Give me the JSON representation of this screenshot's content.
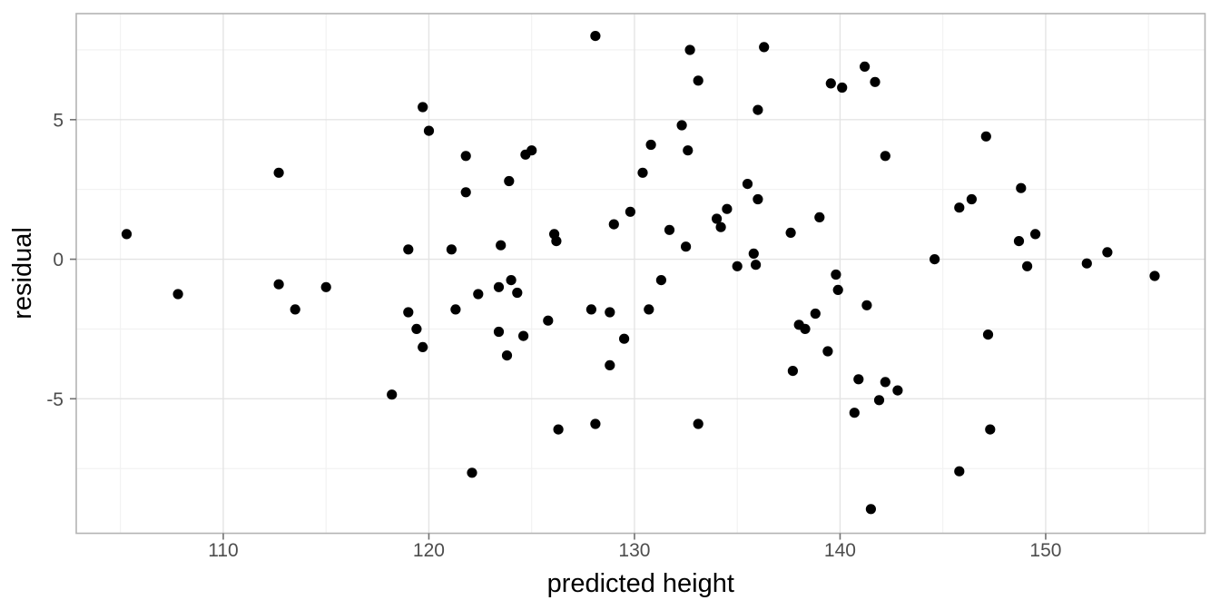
{
  "chart_data": {
    "type": "scatter",
    "title": "",
    "xlabel": "predicted height",
    "ylabel": "residual",
    "xlim": [
      102.85,
      157.75
    ],
    "ylim": [
      -9.82,
      8.8
    ],
    "x_major_ticks": [
      110,
      120,
      130,
      140,
      150
    ],
    "x_minor_ticks": [
      105,
      115,
      125,
      135,
      145,
      155
    ],
    "y_major_ticks": [
      -5,
      0,
      5
    ],
    "y_minor_ticks": [
      -7.5,
      -2.5,
      2.5,
      7.5
    ],
    "grid": true,
    "legend_position": "none",
    "colors": {
      "background": "#ffffff",
      "panel_background": "#ffffff",
      "panel_border": "#b4b4b4",
      "grid_major": "#e4e4e4",
      "grid_minor": "#f1f1f1",
      "tick_mark": "#707070",
      "tick_label": "#4d4d4d",
      "axis_title": "#000000",
      "point": "#000000"
    },
    "point_radius_px": 5.6,
    "points": [
      [
        105.3,
        0.9
      ],
      [
        107.8,
        -1.25
      ],
      [
        112.7,
        3.1
      ],
      [
        112.7,
        -0.9
      ],
      [
        113.5,
        -1.8
      ],
      [
        115.0,
        -1.0
      ],
      [
        118.2,
        -4.85
      ],
      [
        119.0,
        0.35
      ],
      [
        119.0,
        -1.9
      ],
      [
        119.4,
        -2.5
      ],
      [
        119.7,
        5.45
      ],
      [
        119.7,
        -3.15
      ],
      [
        120.0,
        4.6
      ],
      [
        121.1,
        0.35
      ],
      [
        121.3,
        -1.8
      ],
      [
        121.8,
        3.7
      ],
      [
        121.8,
        2.4
      ],
      [
        122.1,
        -7.65
      ],
      [
        122.4,
        -1.25
      ],
      [
        123.4,
        -1.0
      ],
      [
        123.4,
        -2.6
      ],
      [
        123.5,
        0.5
      ],
      [
        123.8,
        -3.45
      ],
      [
        123.9,
        2.8
      ],
      [
        124.0,
        -0.75
      ],
      [
        124.3,
        -1.2
      ],
      [
        124.6,
        -2.75
      ],
      [
        124.7,
        3.75
      ],
      [
        125.0,
        3.9
      ],
      [
        125.8,
        -2.2
      ],
      [
        126.1,
        0.9
      ],
      [
        126.2,
        0.65
      ],
      [
        126.3,
        -6.1
      ],
      [
        127.9,
        -1.8
      ],
      [
        128.1,
        8.0
      ],
      [
        128.1,
        -5.9
      ],
      [
        128.8,
        -1.9
      ],
      [
        128.8,
        -3.8
      ],
      [
        129.0,
        1.25
      ],
      [
        129.5,
        -2.85
      ],
      [
        129.8,
        1.7
      ],
      [
        130.4,
        3.1
      ],
      [
        130.7,
        -1.8
      ],
      [
        130.8,
        4.1
      ],
      [
        131.3,
        -0.75
      ],
      [
        131.7,
        1.05
      ],
      [
        132.3,
        4.8
      ],
      [
        132.5,
        0.45
      ],
      [
        132.6,
        3.9
      ],
      [
        132.7,
        7.5
      ],
      [
        133.1,
        6.4
      ],
      [
        133.1,
        -5.9
      ],
      [
        134.0,
        1.45
      ],
      [
        134.2,
        1.15
      ],
      [
        134.5,
        1.8
      ],
      [
        135.0,
        -0.25
      ],
      [
        135.5,
        2.7
      ],
      [
        135.8,
        0.2
      ],
      [
        135.9,
        -0.2
      ],
      [
        136.0,
        5.35
      ],
      [
        136.0,
        2.15
      ],
      [
        136.3,
        7.6
      ],
      [
        137.6,
        0.95
      ],
      [
        137.7,
        -4.0
      ],
      [
        138.0,
        -2.35
      ],
      [
        138.3,
        -2.5
      ],
      [
        138.8,
        -1.95
      ],
      [
        139.0,
        1.5
      ],
      [
        139.4,
        -3.3
      ],
      [
        139.55,
        6.3
      ],
      [
        139.8,
        -0.55
      ],
      [
        139.9,
        -1.1
      ],
      [
        140.1,
        6.15
      ],
      [
        140.7,
        -5.5
      ],
      [
        140.9,
        -4.3
      ],
      [
        141.2,
        6.9
      ],
      [
        141.3,
        -1.65
      ],
      [
        141.5,
        -8.95
      ],
      [
        141.7,
        6.35
      ],
      [
        141.9,
        -5.05
      ],
      [
        142.2,
        3.7
      ],
      [
        142.2,
        -4.4
      ],
      [
        142.8,
        -4.7
      ],
      [
        144.6,
        0.0
      ],
      [
        145.8,
        1.85
      ],
      [
        145.8,
        -7.6
      ],
      [
        146.4,
        2.15
      ],
      [
        147.1,
        4.4
      ],
      [
        147.2,
        -2.7
      ],
      [
        147.3,
        -6.1
      ],
      [
        148.7,
        0.65
      ],
      [
        148.8,
        2.55
      ],
      [
        149.1,
        -0.25
      ],
      [
        149.5,
        0.9
      ],
      [
        152.0,
        -0.15
      ],
      [
        153.0,
        0.25
      ],
      [
        155.3,
        -0.6
      ]
    ]
  }
}
